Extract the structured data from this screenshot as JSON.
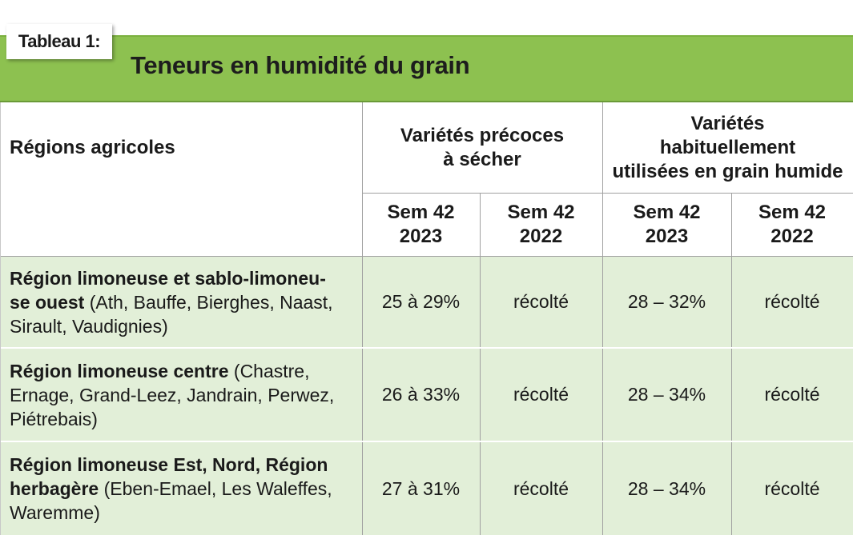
{
  "tag_label": "Tableau 1:",
  "title": "Teneurs en humidité du grain",
  "header": {
    "regions_label": "Régions agricoles",
    "group1_line1": "Variétés précoces",
    "group1_line2": "à sécher",
    "group2_line1": "Variétés",
    "group2_line2": "habituellement",
    "group2_line3": "utilisées en grain humide",
    "cols": [
      {
        "l1": "Sem 42",
        "l2": "2023"
      },
      {
        "l1": "Sem 42",
        "l2": "2022"
      },
      {
        "l1": "Sem 42",
        "l2": "2023"
      },
      {
        "l1": "Sem 42",
        "l2": "2022"
      }
    ]
  },
  "rows": [
    {
      "region_bold_1": "Région limoneuse et sablo-limoneu-",
      "region_bold_2": "se ouest",
      "region_rest_2": " (Ath, Bauffe, Bierghes, Naast,",
      "region_rest_3": "Sirault, Vaudignies)",
      "values": [
        "25 à 29%",
        "récolté",
        "28 – 32%",
        "récolté"
      ]
    },
    {
      "region_bold_1": "Région limoneuse centre",
      "region_rest_1": " (Chastre,",
      "region_rest_2": "Ernage, Grand-Leez, Jandrain, Perwez,",
      "region_rest_3": "Piétrebais)",
      "values": [
        "26 à 33%",
        "récolté",
        "28 – 34%",
        "récolté"
      ]
    },
    {
      "region_bold_1": "Région limoneuse Est, Nord, Région",
      "region_bold_2": "herbagère",
      "region_rest_2": " (Eben-Emael, Les Waleffes,",
      "region_rest_3": "Waremme)",
      "values": [
        "27 à 31%",
        "récolté",
        "28 – 34%",
        "récolté"
      ]
    }
  ]
}
